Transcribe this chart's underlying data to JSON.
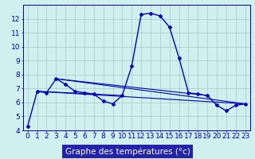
{
  "title": "Graphe des températures (°c)",
  "x_hours": [
    0,
    1,
    2,
    3,
    4,
    5,
    6,
    7,
    8,
    9,
    10,
    11,
    12,
    13,
    14,
    15,
    16,
    17,
    18,
    19,
    20,
    21,
    22,
    23
  ],
  "temperatures": [
    4.3,
    6.8,
    6.7,
    7.7,
    7.3,
    6.8,
    6.7,
    6.6,
    6.1,
    5.9,
    6.5,
    8.6,
    12.3,
    12.4,
    12.2,
    11.4,
    9.2,
    6.7,
    6.6,
    6.5,
    5.8,
    5.4,
    5.8,
    5.9
  ],
  "ylim": [
    4,
    13
  ],
  "xlim": [
    -0.5,
    23.5
  ],
  "yticks": [
    4,
    5,
    6,
    7,
    8,
    9,
    10,
    11,
    12
  ],
  "bg_color": "#d0f0f0",
  "grid_color": "#a8c8c8",
  "line_color": "#0000bb",
  "label_bg_color": "#2222aa",
  "label_text_color": "#ffffff",
  "marker": "D",
  "markersize": 2.0,
  "linewidth": 1.0,
  "xlabel_fontsize": 7.5,
  "tick_fontsize": 6.5,
  "trend_lines": [
    {
      "x0": 1,
      "y0": 6.8,
      "x1": 23,
      "y1": 5.9
    },
    {
      "x0": 3,
      "y0": 7.7,
      "x1": 23,
      "y1": 5.9
    },
    {
      "x0": 3,
      "y0": 7.7,
      "x1": 19,
      "y1": 6.5
    },
    {
      "x0": 1,
      "y0": 6.8,
      "x1": 10,
      "y1": 6.5
    }
  ]
}
